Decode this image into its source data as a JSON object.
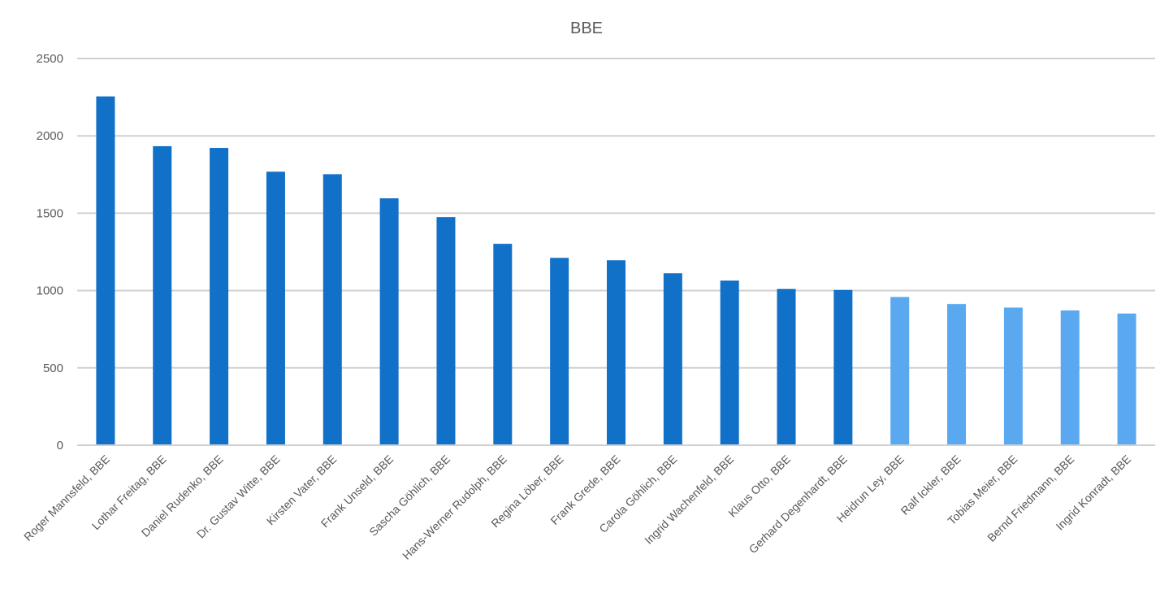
{
  "chart_data": {
    "type": "bar",
    "title": "BBE",
    "xlabel": "",
    "ylabel": "",
    "ylim": [
      0,
      2500
    ],
    "yticks": [
      0,
      500,
      1000,
      1500,
      2000,
      2500
    ],
    "grid": true,
    "legend": "none",
    "categories": [
      "Roger Mannsfeld, BBE",
      "Lothar Freitag, BBE",
      "Daniel Rudenko, BBE",
      "Dr. Gustav Witte, BBE",
      "Kirsten Vater, BBE",
      "Frank Unseld, BBE",
      "Sascha Göhlich, BBE",
      "Hans-Werner Rudolph, BBE",
      "Regina Löber, BBE",
      "Frank Grede, BBE",
      "Carola Göhlich, BBE",
      "Ingrid Wachenfeld, BBE",
      "Klaus Otto, BBE",
      "Gerhard Degenhardt, BBE",
      "Heidrun Ley, BBE",
      "Ralf Ickler, BBE",
      "Tobias Meier, BBE",
      "Bernd Friedmann, BBE",
      "Ingrid Konradt, BBE"
    ],
    "values": [
      2255,
      1933,
      1922,
      1768,
      1752,
      1596,
      1475,
      1302,
      1211,
      1196,
      1112,
      1064,
      1010,
      1004,
      958,
      913,
      890,
      871,
      851
    ],
    "bar_colors": [
      "#1170c8",
      "#1170c8",
      "#1170c8",
      "#1170c8",
      "#1170c8",
      "#1170c8",
      "#1170c8",
      "#1170c8",
      "#1170c8",
      "#1170c8",
      "#1170c8",
      "#1170c8",
      "#1170c8",
      "#1170c8",
      "#5aa8f0",
      "#5aa8f0",
      "#5aa8f0",
      "#5aa8f0",
      "#5aa8f0"
    ]
  }
}
